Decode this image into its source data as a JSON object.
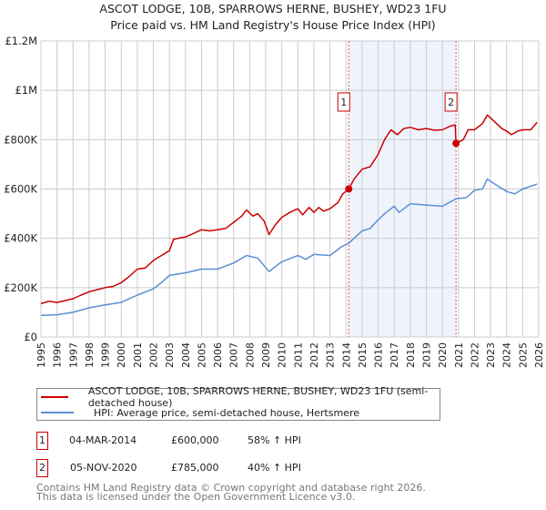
{
  "chart_data": {
    "type": "line",
    "title": "ASCOT LODGE, 10B, SPARROWS HERNE, BUSHEY, WD23 1FU",
    "subtitle": "Price paid vs. HM Land Registry's House Price Index (HPI)",
    "xlabel": "",
    "ylabel": "",
    "xlim": [
      1995,
      2026
    ],
    "ylim": [
      0,
      1200000
    ],
    "grid": true,
    "y_ticks": [
      {
        "v": 0,
        "label": "£0"
      },
      {
        "v": 200000,
        "label": "£200K"
      },
      {
        "v": 400000,
        "label": "£400K"
      },
      {
        "v": 600000,
        "label": "£600K"
      },
      {
        "v": 800000,
        "label": "£800K"
      },
      {
        "v": 1000000,
        "label": "£1M"
      },
      {
        "v": 1200000,
        "label": "£1.2M"
      }
    ],
    "x_ticks": [
      "1995",
      "1996",
      "1997",
      "1998",
      "1999",
      "2000",
      "2001",
      "2002",
      "2003",
      "2004",
      "2005",
      "2006",
      "2007",
      "2008",
      "2009",
      "2010",
      "2011",
      "2012",
      "2013",
      "2014",
      "2015",
      "2016",
      "2017",
      "2018",
      "2019",
      "2020",
      "2021",
      "2022",
      "2023",
      "2024",
      "2025",
      "2026"
    ],
    "shaded_range": [
      2014.17,
      2020.85
    ],
    "series": [
      {
        "name": "ASCOT LODGE, 10B, SPARROWS HERNE, BUSHEY, WD23 1FU (semi-detached house)",
        "color": "#cc0000",
        "x": [
          1995,
          1995.5,
          1996,
          1997,
          1997.5,
          1998,
          1999,
          1999.5,
          2000,
          2000.5,
          2001,
          2001.5,
          2002,
          2002.5,
          2003,
          2003.25,
          2003.5,
          2004,
          2004.5,
          2005,
          2005.5,
          2006,
          2006.5,
          2007,
          2007.5,
          2007.8,
          2008.2,
          2008.5,
          2008.9,
          2009.2,
          2009.6,
          2010,
          2010.5,
          2011,
          2011.3,
          2011.7,
          2012,
          2012.3,
          2012.6,
          2013,
          2013.5,
          2013.8,
          2014.17,
          2014.5,
          2015,
          2015.5,
          2016,
          2016.4,
          2016.8,
          2017.2,
          2017.6,
          2018,
          2018.5,
          2019,
          2019.5,
          2020,
          2020.5,
          2020.8,
          2020.85,
          2021.3,
          2021.6,
          2022,
          2022.5,
          2022.8,
          2023.3,
          2023.7,
          2024,
          2024.3,
          2024.7,
          2025,
          2025.5,
          2025.9
        ],
        "y": [
          135000,
          145000,
          140000,
          155000,
          170000,
          183000,
          200000,
          205000,
          220000,
          245000,
          275000,
          280000,
          310000,
          330000,
          350000,
          395000,
          400000,
          405000,
          420000,
          435000,
          430000,
          435000,
          440000,
          465000,
          490000,
          515000,
          490000,
          500000,
          470000,
          415000,
          455000,
          485000,
          505000,
          520000,
          495000,
          525000,
          505000,
          525000,
          510000,
          520000,
          545000,
          580000,
          600000,
          640000,
          680000,
          690000,
          740000,
          800000,
          840000,
          820000,
          845000,
          850000,
          840000,
          845000,
          838000,
          840000,
          855000,
          860000,
          785000,
          800000,
          840000,
          840000,
          865000,
          900000,
          870000,
          845000,
          835000,
          820000,
          835000,
          840000,
          840000,
          870000
        ]
      },
      {
        "name": "HPI: Average price, semi-detached house, Hertsmere",
        "color": "#5b8fd4",
        "x": [
          1995,
          1996,
          1997,
          1998,
          1999,
          2000,
          2001,
          2002,
          2002.5,
          2003,
          2004,
          2005,
          2006,
          2007,
          2007.8,
          2008.5,
          2009.2,
          2010,
          2011,
          2011.5,
          2012,
          2013,
          2013.7,
          2014.17,
          2015,
          2015.5,
          2016,
          2016.5,
          2017,
          2017.3,
          2018,
          2019,
          2020,
          2020.85,
          2021.5,
          2022,
          2022.5,
          2022.8,
          2023.5,
          2024,
          2024.5,
          2025,
          2025.9
        ],
        "y": [
          88000,
          90000,
          100000,
          118000,
          130000,
          140000,
          170000,
          195000,
          220000,
          250000,
          260000,
          275000,
          275000,
          300000,
          330000,
          320000,
          265000,
          305000,
          330000,
          315000,
          335000,
          330000,
          365000,
          380000,
          430000,
          440000,
          475000,
          505000,
          530000,
          505000,
          540000,
          535000,
          530000,
          560000,
          565000,
          595000,
          600000,
          640000,
          610000,
          590000,
          580000,
          600000,
          620000
        ]
      }
    ],
    "annotations": [
      {
        "label": "1",
        "x": 2014.17,
        "y": 600000
      },
      {
        "label": "2",
        "x": 2020.85,
        "y": 785000
      }
    ]
  },
  "legend": [
    "ASCOT LODGE, 10B, SPARROWS HERNE, BUSHEY, WD23 1FU (semi-detached house)",
    "HPI: Average price, semi-detached house, Hertsmere"
  ],
  "transactions": [
    {
      "num": "1",
      "date": "04-MAR-2014",
      "price": "£600,000",
      "hpi": "58% ↑ HPI"
    },
    {
      "num": "2",
      "date": "05-NOV-2020",
      "price": "£785,000",
      "hpi": "40% ↑ HPI"
    }
  ],
  "footer": [
    "Contains HM Land Registry data © Crown copyright and database right 2026.",
    "This data is licensed under the Open Government Licence v3.0."
  ]
}
